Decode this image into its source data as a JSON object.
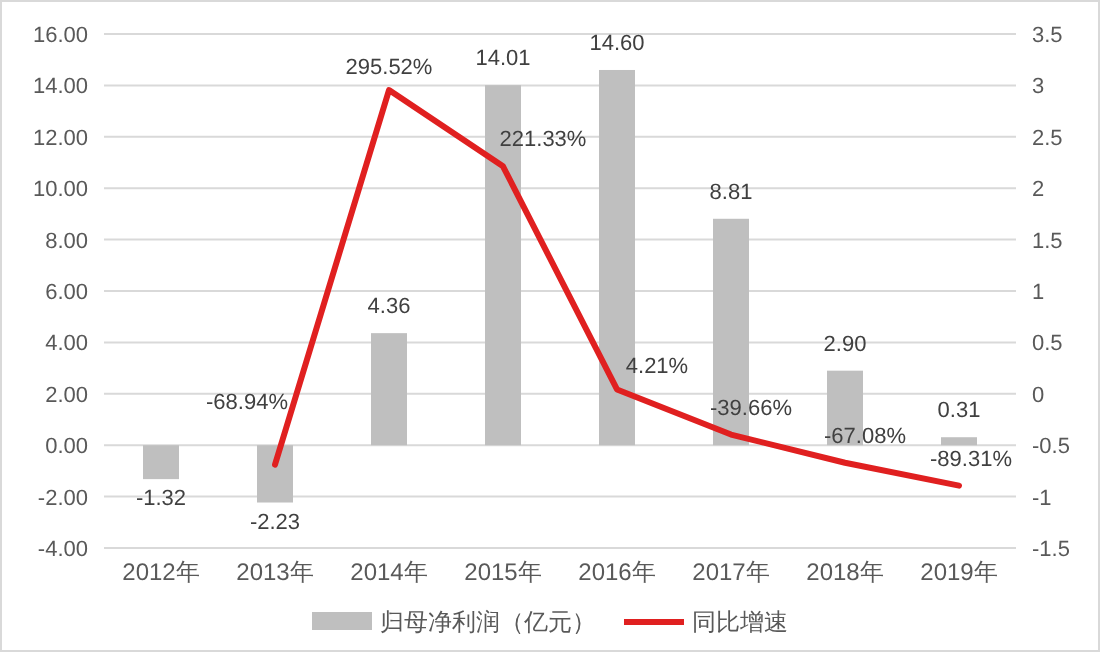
{
  "chart_data": {
    "type": "bar",
    "categories": [
      "2012年",
      "2013年",
      "2014年",
      "2015年",
      "2016年",
      "2017年",
      "2018年",
      "2019年"
    ],
    "series": [
      {
        "name": "归母净利润（亿元）",
        "color": "#bfbfbf",
        "values": [
          -1.32,
          -2.23,
          4.36,
          14.01,
          14.6,
          8.81,
          2.9,
          0.31
        ],
        "value_labels": [
          "-1.32",
          "-2.23",
          "4.36",
          "14.01",
          "14.60",
          "8.81",
          "2.90",
          "0.31"
        ]
      },
      {
        "name": "同比增速",
        "type": "line",
        "axis": "y2",
        "color": "#e02020",
        "values": [
          null,
          -0.6894,
          2.9552,
          2.2133,
          0.0421,
          -0.3966,
          -0.6708,
          -0.8931
        ],
        "value_labels": [
          null,
          "-68.94%",
          "295.52%",
          "221.33%",
          "4.21%",
          "-39.66%",
          "-67.08%",
          "-89.31%"
        ]
      }
    ],
    "ylim": [
      -4,
      16
    ],
    "yticks": [
      {
        "value": -4,
        "label": "-4.00"
      },
      {
        "value": -2,
        "label": "-2.00"
      },
      {
        "value": 0,
        "label": "0.00"
      },
      {
        "value": 2,
        "label": "2.00"
      },
      {
        "value": 4,
        "label": "4.00"
      },
      {
        "value": 6,
        "label": "6.00"
      },
      {
        "value": 8,
        "label": "8.00"
      },
      {
        "value": 10,
        "label": "10.00"
      },
      {
        "value": 12,
        "label": "12.00"
      },
      {
        "value": 14,
        "label": "14.00"
      },
      {
        "value": 16,
        "label": "16.00"
      }
    ],
    "y2lim": [
      -1.5,
      3.5
    ],
    "y2ticks": [
      -1.5,
      -1,
      -0.5,
      0,
      0.5,
      1,
      1.5,
      2,
      2.5,
      3,
      3.5
    ],
    "grid": "y",
    "legend": "bottom"
  }
}
